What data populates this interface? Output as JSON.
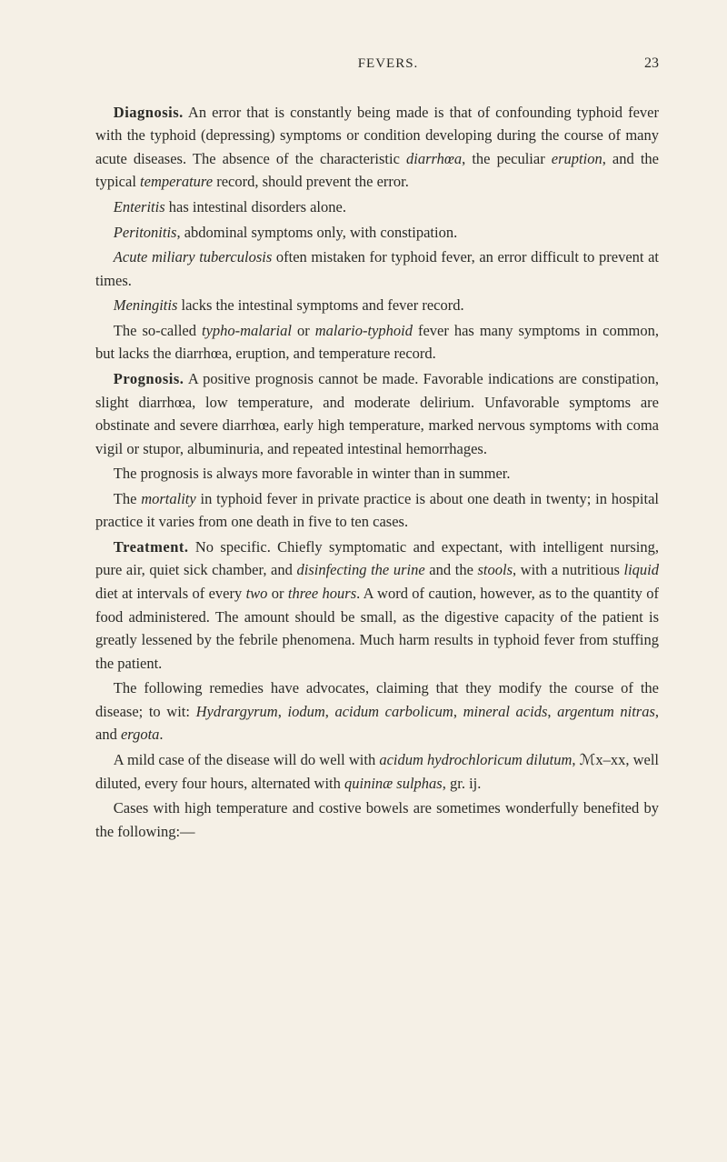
{
  "header": {
    "title": "FEVERS.",
    "page_number": "23"
  },
  "paragraphs": {
    "p1_heading": "Diagnosis.",
    "p1": " An error that is constantly being made is that of confounding typhoid fever with the typhoid (depressing) symptoms or condition developing during the course of many acute diseases. The absence of the characteristic ",
    "p1_i1": "diarrhœa",
    "p1_2": ", the peculiar ",
    "p1_i2": "eruption",
    "p1_3": ", and the typical ",
    "p1_i3": "temperature",
    "p1_4": " record, should prevent the error.",
    "p2_i1": "Enteritis",
    "p2": " has intestinal disorders alone.",
    "p3_i1": "Peritonitis",
    "p3": ", abdominal symptoms only, with constipation.",
    "p4_i1": "Acute miliary tuberculosis",
    "p4": " often mistaken for typhoid fever, an error difficult to prevent at times.",
    "p5_i1": "Meningitis",
    "p5": " lacks the intestinal symptoms and fever record.",
    "p6_1": "The so-called ",
    "p6_i1": "typho-malarial",
    "p6_2": " or ",
    "p6_i2": "malario-typhoid",
    "p6_3": " fever has many symptoms in common, but lacks the diarrhœa, eruption, and temperature record.",
    "p7_heading": "Prognosis.",
    "p7": " A positive prognosis cannot be made. Favorable indications are constipation, slight diarrhœa, low temperature, and moderate delirium. Unfavorable symptoms are obstinate and severe diarrhœa, early high temperature, marked nervous symptoms with coma vigil or stupor, albuminuria, and repeated intestinal hemorrhages.",
    "p8": "The prognosis is always more favorable in winter than in summer.",
    "p9_1": "The ",
    "p9_i1": "mortality",
    "p9_2": " in typhoid fever in private practice is about one death in twenty; in hospital practice it varies from one death in five to ten cases.",
    "p10_heading": "Treatment.",
    "p10_1": " No specific. Chiefly symptomatic and expectant, with intelligent nursing, pure air, quiet sick chamber, and ",
    "p10_i1": "disinfecting the urine",
    "p10_2": " and the ",
    "p10_i2": "stools",
    "p10_3": ", with a nutritious ",
    "p10_i3": "liquid",
    "p10_4": " diet at intervals of every ",
    "p10_i4": "two",
    "p10_5": " or ",
    "p10_i5": "three hours",
    "p10_6": ". A word of caution, however, as to the quantity of food administered. The amount should be small, as the digestive capacity of the patient is greatly lessened by the febrile phenomena. Much harm results in typhoid fever from stuffing the patient.",
    "p11_1": "The following remedies have advocates, claiming that they modify the course of the disease; to wit: ",
    "p11_i1": "Hydrargyrum",
    "p11_2": ", ",
    "p11_i2": "iodum",
    "p11_3": ", ",
    "p11_i3": "acidum carbolicum",
    "p11_4": ", ",
    "p11_i4": "mineral acids",
    "p11_5": ", ",
    "p11_i5": "argentum nitras",
    "p11_6": ", and ",
    "p11_i6": "ergota",
    "p11_7": ".",
    "p12_1": "A mild case of the disease will do well with ",
    "p12_i1": "acidum hydrochloricum dilutum",
    "p12_2": ", ℳx–xx, well diluted, every four hours, alternated with ",
    "p12_i2": "quininæ sulphas",
    "p12_3": ", gr. ij.",
    "p13": "Cases with high temperature and costive bowels are sometimes wonderfully benefited by the following:—"
  },
  "colors": {
    "background": "#f5f0e6",
    "text": "#2a2a26"
  },
  "typography": {
    "body_fontsize": 16.5,
    "header_fontsize": 15,
    "line_height": 1.55,
    "font_family": "Georgia, Times New Roman, serif"
  }
}
